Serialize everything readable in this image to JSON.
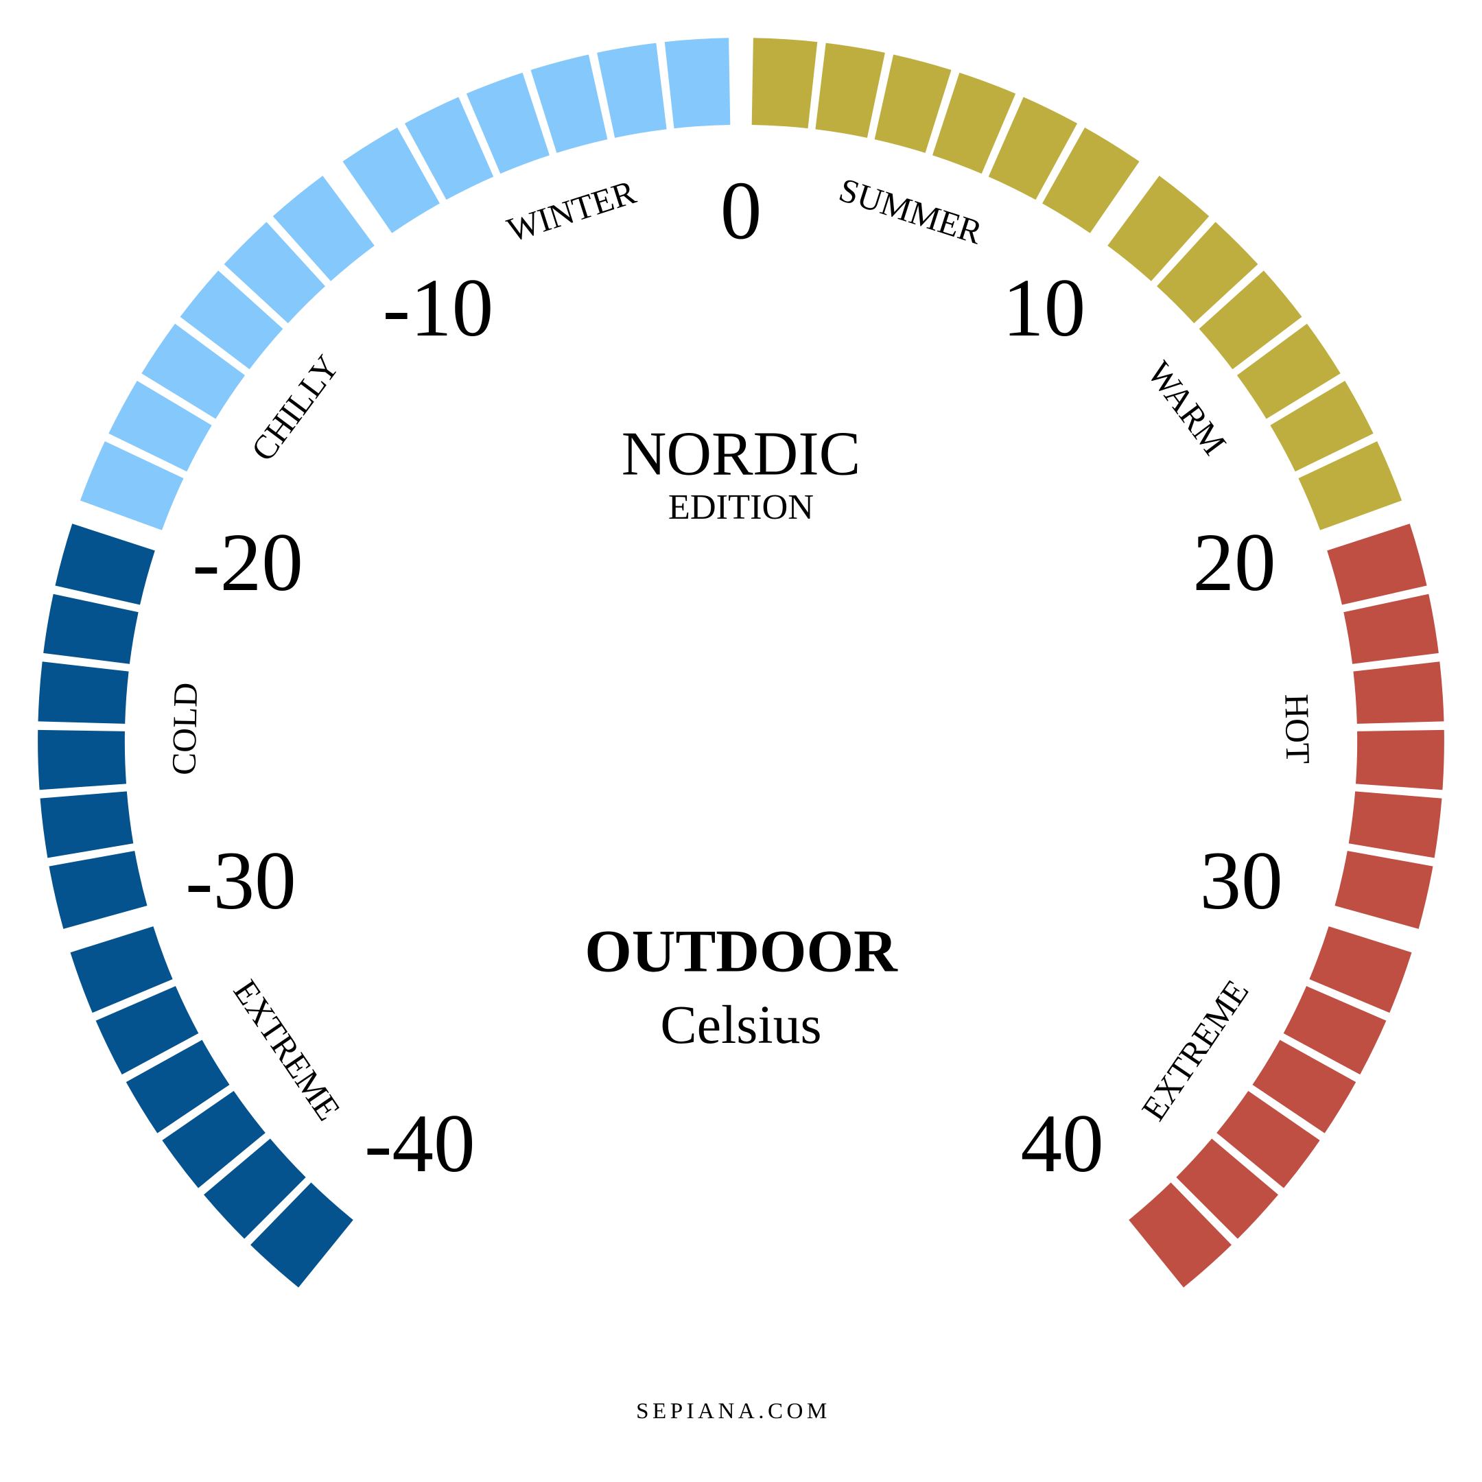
{
  "dial": {
    "min": -40,
    "max": 40,
    "ticks": [
      -40,
      -30,
      -20,
      -10,
      0,
      10,
      20,
      30,
      40
    ]
  },
  "zones": [
    {
      "label": "EXTREME",
      "from": -40,
      "to": -30,
      "color": "#04528e"
    },
    {
      "label": "COLD",
      "from": -30,
      "to": -20,
      "color": "#04528e"
    },
    {
      "label": "CHILLY",
      "from": -20,
      "to": -10,
      "color": "#85c8fb"
    },
    {
      "label": "WINTER",
      "from": -10,
      "to": 0,
      "color": "#85c8fb"
    },
    {
      "label": "SUMMER",
      "from": 0,
      "to": 10,
      "color": "#beae40"
    },
    {
      "label": "WARM",
      "from": 10,
      "to": 20,
      "color": "#beae40"
    },
    {
      "label": "HOT",
      "from": 20,
      "to": 30,
      "color": "#bf4e43"
    },
    {
      "label": "EXTREME",
      "from": 30,
      "to": 40,
      "color": "#bf4e43"
    }
  ],
  "header": {
    "title": "NORDIC",
    "subtitle": "EDITION"
  },
  "center": {
    "title": "OUTDOOR",
    "unit": "Celsius"
  },
  "footer": "SEPIANA.COM"
}
